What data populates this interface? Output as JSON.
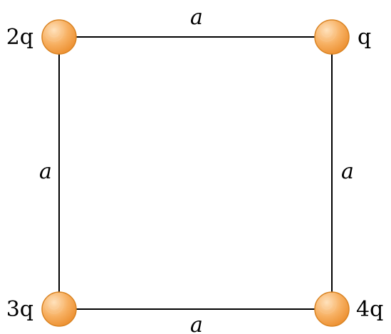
{
  "diagram": {
    "charges": {
      "top_left": "2q",
      "top_right": "q",
      "bottom_left": "3q",
      "bottom_right": "4q"
    },
    "sides": {
      "top": "a",
      "bottom": "a",
      "left": "a",
      "right": "a"
    },
    "colors": {
      "line": "#000000",
      "charge_fill": "#f5a54f",
      "charge_highlight": "#ffe2bd",
      "charge_edge": "#d98322"
    }
  }
}
